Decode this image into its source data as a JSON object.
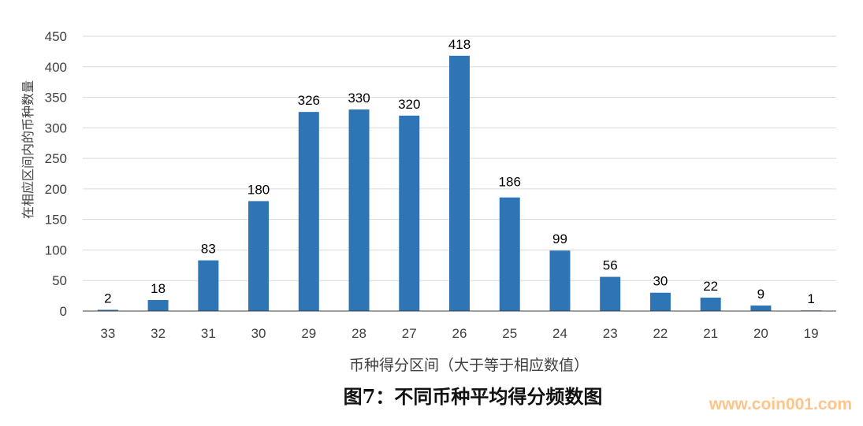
{
  "chart_data": {
    "type": "bar",
    "title": "图7：不同币种平均得分频数图",
    "xlabel": "币种得分区间（大于等于相应数值）",
    "ylabel": "在相应区间内的币种数量",
    "categories": [
      "33",
      "32",
      "31",
      "30",
      "29",
      "28",
      "27",
      "26",
      "25",
      "24",
      "23",
      "22",
      "21",
      "20",
      "19"
    ],
    "values": [
      2,
      18,
      83,
      180,
      326,
      330,
      320,
      418,
      186,
      99,
      56,
      30,
      22,
      9,
      1
    ],
    "ylim": [
      0,
      450
    ],
    "yticks": [
      0,
      50,
      100,
      150,
      200,
      250,
      300,
      350,
      400,
      450
    ],
    "grid": true,
    "data_labels": true,
    "bar_color": "#2e75b6"
  },
  "watermark": "www.coin001.com"
}
